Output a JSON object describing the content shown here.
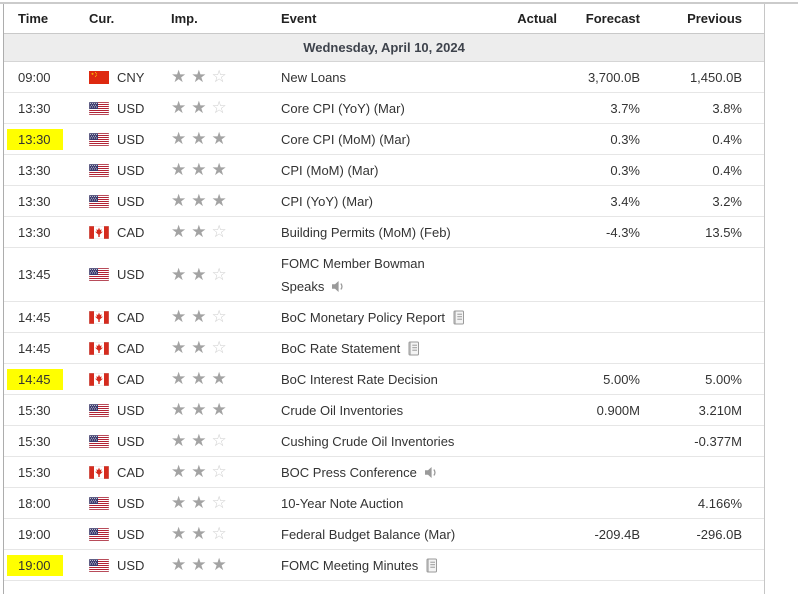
{
  "colors": {
    "highlight": "#ffff00",
    "star_filled": "#a3a3a3",
    "star_empty": "#cfcfcf",
    "date_row_bg": "#ededed",
    "row_border": "#e6e6e6",
    "icon_gray": "#9a9a9a",
    "flag_red_china": "#de2910",
    "flag_red_canada": "#d52b1e",
    "flag_blue_usa": "#3c3b6e"
  },
  "table": {
    "columns": {
      "time": "Time",
      "cur": "Cur.",
      "imp": "Imp.",
      "event": "Event",
      "actual": "Actual",
      "forecast": "Forecast",
      "previous": "Previous"
    },
    "date_header": "Wednesday, April 10, 2024",
    "rows": [
      {
        "time": "09:00",
        "highlighted": false,
        "flag": "china-flag",
        "currency": "CNY",
        "importance": 2,
        "event_lines": [
          "New Loans"
        ],
        "event_icon": "",
        "actual": "",
        "forecast": "3,700.0B",
        "previous": "1,450.0B",
        "tall": false
      },
      {
        "time": "13:30",
        "highlighted": false,
        "flag": "usa-flag",
        "currency": "USD",
        "importance": 2,
        "event_lines": [
          "Core CPI (YoY) (Mar)"
        ],
        "event_icon": "",
        "actual": "",
        "forecast": "3.7%",
        "previous": "3.8%",
        "tall": false
      },
      {
        "time": "13:30",
        "highlighted": true,
        "flag": "usa-flag",
        "currency": "USD",
        "importance": 3,
        "event_lines": [
          "Core CPI (MoM) (Mar)"
        ],
        "event_icon": "",
        "actual": "",
        "forecast": "0.3%",
        "previous": "0.4%",
        "tall": false
      },
      {
        "time": "13:30",
        "highlighted": false,
        "flag": "usa-flag",
        "currency": "USD",
        "importance": 3,
        "event_lines": [
          "CPI (MoM) (Mar)"
        ],
        "event_icon": "",
        "actual": "",
        "forecast": "0.3%",
        "previous": "0.4%",
        "tall": false
      },
      {
        "time": "13:30",
        "highlighted": false,
        "flag": "usa-flag",
        "currency": "USD",
        "importance": 3,
        "event_lines": [
          "CPI (YoY) (Mar)"
        ],
        "event_icon": "",
        "actual": "",
        "forecast": "3.4%",
        "previous": "3.2%",
        "tall": false
      },
      {
        "time": "13:30",
        "highlighted": false,
        "flag": "canada-flag",
        "currency": "CAD",
        "importance": 2,
        "event_lines": [
          "Building Permits (MoM) (Feb)"
        ],
        "event_icon": "",
        "actual": "",
        "forecast": "-4.3%",
        "previous": "13.5%",
        "tall": false
      },
      {
        "time": "13:45",
        "highlighted": false,
        "flag": "usa-flag",
        "currency": "USD",
        "importance": 2,
        "event_lines": [
          "FOMC Member Bowman",
          "Speaks"
        ],
        "event_icon": "speaker",
        "actual": "",
        "forecast": "",
        "previous": "",
        "tall": true
      },
      {
        "time": "14:45",
        "highlighted": false,
        "flag": "canada-flag",
        "currency": "CAD",
        "importance": 2,
        "event_lines": [
          "BoC Monetary Policy Report"
        ],
        "event_icon": "report",
        "actual": "",
        "forecast": "",
        "previous": "",
        "tall": false
      },
      {
        "time": "14:45",
        "highlighted": false,
        "flag": "canada-flag",
        "currency": "CAD",
        "importance": 2,
        "event_lines": [
          "BoC Rate Statement"
        ],
        "event_icon": "report",
        "actual": "",
        "forecast": "",
        "previous": "",
        "tall": false
      },
      {
        "time": "14:45",
        "highlighted": true,
        "flag": "canada-flag",
        "currency": "CAD",
        "importance": 3,
        "event_lines": [
          "BoC Interest Rate Decision"
        ],
        "event_icon": "",
        "actual": "",
        "forecast": "5.00%",
        "previous": "5.00%",
        "tall": false
      },
      {
        "time": "15:30",
        "highlighted": false,
        "flag": "usa-flag",
        "currency": "USD",
        "importance": 3,
        "event_lines": [
          "Crude Oil Inventories"
        ],
        "event_icon": "",
        "actual": "",
        "forecast": "0.900M",
        "previous": "3.210M",
        "tall": false
      },
      {
        "time": "15:30",
        "highlighted": false,
        "flag": "usa-flag",
        "currency": "USD",
        "importance": 2,
        "event_lines": [
          "Cushing Crude Oil Inventories"
        ],
        "event_icon": "",
        "actual": "",
        "forecast": "",
        "previous": "-0.377M",
        "tall": false
      },
      {
        "time": "15:30",
        "highlighted": false,
        "flag": "canada-flag",
        "currency": "CAD",
        "importance": 2,
        "event_lines": [
          "BOC Press Conference"
        ],
        "event_icon": "speaker",
        "actual": "",
        "forecast": "",
        "previous": "",
        "tall": false
      },
      {
        "time": "18:00",
        "highlighted": false,
        "flag": "usa-flag",
        "currency": "USD",
        "importance": 2,
        "event_lines": [
          "10-Year Note Auction"
        ],
        "event_icon": "",
        "actual": "",
        "forecast": "",
        "previous": "4.166%",
        "tall": false
      },
      {
        "time": "19:00",
        "highlighted": false,
        "flag": "usa-flag",
        "currency": "USD",
        "importance": 2,
        "event_lines": [
          "Federal Budget Balance (Mar)"
        ],
        "event_icon": "",
        "actual": "",
        "forecast": "-209.4B",
        "previous": "-296.0B",
        "tall": false
      },
      {
        "time": "19:00",
        "highlighted": true,
        "flag": "usa-flag",
        "currency": "USD",
        "importance": 3,
        "event_lines": [
          "FOMC Meeting Minutes"
        ],
        "event_icon": "report",
        "actual": "",
        "forecast": "",
        "previous": "",
        "tall": false
      }
    ]
  }
}
